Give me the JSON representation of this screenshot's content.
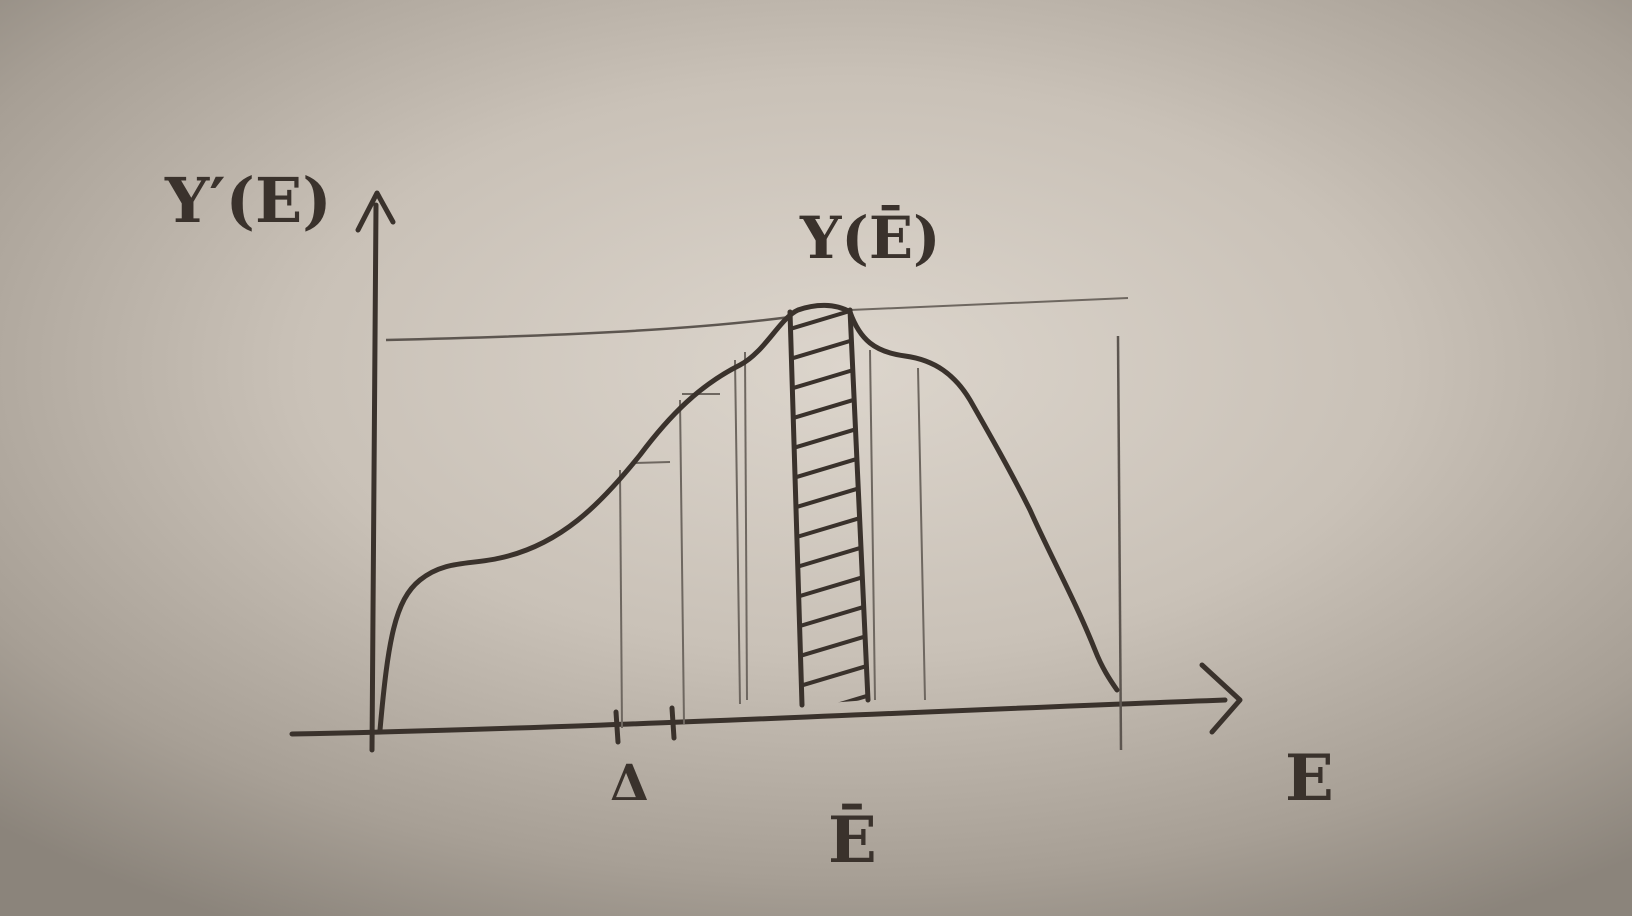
{
  "labels": {
    "y_axis": "Υ′(E)",
    "peak": "Υ(Ē)",
    "x_axis": "E",
    "delta": "Δ",
    "e_bar": "Ē"
  },
  "colors": {
    "paper": "#d3ccc3",
    "ink": "#3a322c"
  }
}
